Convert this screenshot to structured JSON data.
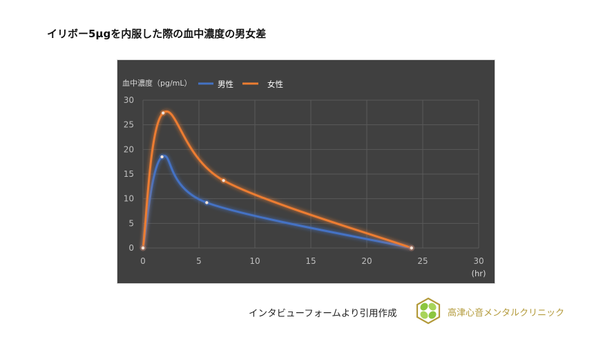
{
  "page": {
    "title": "イリボー5μgを内服した際の血中濃度の男女差"
  },
  "footer": {
    "source": "インタビューフォームより引用作成",
    "clinic_name": "高津心音メンタルクリニック",
    "logo_icon": "clover-hexagon-logo"
  },
  "colors": {
    "background": "#404040",
    "grid": "#5a5a5a",
    "axis_text": "#bfbfbf",
    "male": "#4472c4",
    "female": "#ed7d31",
    "clinic_gold": "#b39a3a"
  },
  "chart_data": {
    "type": "line",
    "title": "",
    "ylabel": "血中濃度（pg/mL）",
    "xlabel": "(hr)",
    "xlim": [
      0,
      30
    ],
    "ylim": [
      0,
      30
    ],
    "x_ticks": [
      0,
      5,
      10,
      15,
      20,
      25,
      30
    ],
    "y_ticks": [
      0,
      5,
      10,
      15,
      20,
      25,
      30
    ],
    "grid": true,
    "smooth": true,
    "legend_position": "top",
    "series": [
      {
        "name": "男性",
        "color": "#4472c4",
        "points": [
          [
            0,
            0
          ],
          [
            1.7,
            18.5
          ],
          [
            5.7,
            9.2
          ],
          [
            24,
            0
          ]
        ]
      },
      {
        "name": "女性",
        "color": "#ed7d31",
        "points": [
          [
            0,
            0
          ],
          [
            1.8,
            27.4
          ],
          [
            7.2,
            13.7
          ],
          [
            24,
            0
          ]
        ]
      }
    ]
  },
  "legend": {
    "ylabel": "血中濃度（pg/mL）",
    "male": "男性",
    "female": "女性"
  },
  "axis": {
    "x_unit": "(hr)",
    "x_ticks": [
      "0",
      "5",
      "10",
      "15",
      "20",
      "25",
      "30"
    ],
    "y_ticks": [
      "0",
      "5",
      "10",
      "15",
      "20",
      "25",
      "30"
    ]
  }
}
